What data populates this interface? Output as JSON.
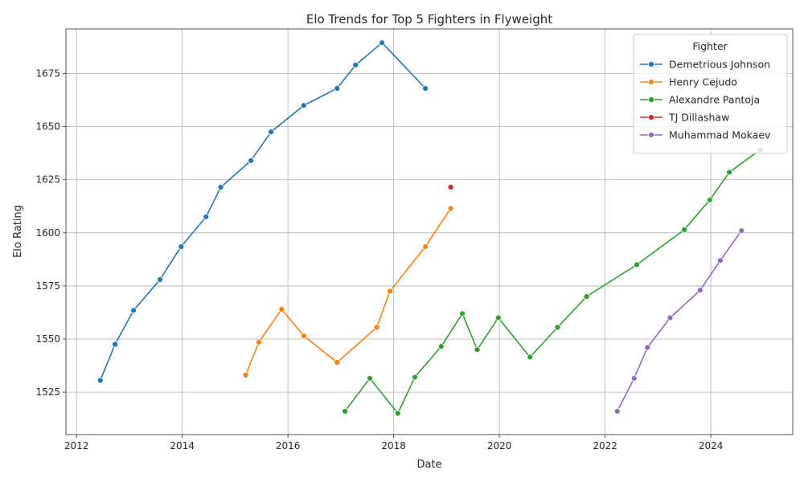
{
  "chart_data": {
    "type": "line",
    "title": "Elo Trends for Top 5 Fighters in Flyweight",
    "xlabel": "Date",
    "ylabel": "Elo Rating",
    "xlim": [
      2011.8,
      2025.55
    ],
    "ylim": [
      1505,
      1696
    ],
    "x_ticks": [
      2012,
      2014,
      2016,
      2018,
      2020,
      2022,
      2024
    ],
    "y_ticks": [
      1525,
      1550,
      1575,
      1600,
      1625,
      1650,
      1675
    ],
    "grid": true,
    "legend": {
      "title": "Fighter",
      "placement": "top-right"
    },
    "series": [
      {
        "name": "Demetrious Johnson",
        "color": "#1f77b4",
        "points": [
          [
            2012.45,
            1530.5
          ],
          [
            2012.73,
            1547.5
          ],
          [
            2013.08,
            1563.5
          ],
          [
            2013.58,
            1578
          ],
          [
            2013.98,
            1593.5
          ],
          [
            2014.45,
            1607.5
          ],
          [
            2014.73,
            1621.5
          ],
          [
            2015.3,
            1634
          ],
          [
            2015.68,
            1647.5
          ],
          [
            2016.3,
            1660
          ],
          [
            2016.93,
            1668
          ],
          [
            2017.28,
            1679
          ],
          [
            2017.78,
            1689.5
          ],
          [
            2018.6,
            1668
          ]
        ]
      },
      {
        "name": "Henry Cejudo",
        "color": "#ff7f0e",
        "points": [
          [
            2015.2,
            1533
          ],
          [
            2015.45,
            1548.5
          ],
          [
            2015.88,
            1564
          ],
          [
            2016.3,
            1551.5
          ],
          [
            2016.93,
            1539
          ],
          [
            2017.68,
            1555.5
          ],
          [
            2017.93,
            1572.5
          ],
          [
            2018.6,
            1593.5
          ],
          [
            2019.08,
            1611.5
          ]
        ]
      },
      {
        "name": "Alexandre Pantoja",
        "color": "#2ca02c",
        "points": [
          [
            2017.08,
            1516
          ],
          [
            2017.55,
            1531.5
          ],
          [
            2018.08,
            1515
          ],
          [
            2018.4,
            1532
          ],
          [
            2018.9,
            1546.5
          ],
          [
            2019.3,
            1562
          ],
          [
            2019.58,
            1545
          ],
          [
            2019.98,
            1560
          ],
          [
            2020.58,
            1541.5
          ],
          [
            2021.1,
            1555.5
          ],
          [
            2021.65,
            1570
          ],
          [
            2022.6,
            1585
          ],
          [
            2023.5,
            1601.5
          ],
          [
            2023.98,
            1615.5
          ],
          [
            2024.35,
            1628.5
          ],
          [
            2024.93,
            1639
          ]
        ]
      },
      {
        "name": "TJ Dillashaw",
        "color": "#d62728",
        "points": [
          [
            2019.08,
            1621.5
          ]
        ]
      },
      {
        "name": "Muhammad Mokaev",
        "color": "#9467bd",
        "points": [
          [
            2022.23,
            1516
          ],
          [
            2022.55,
            1531.5
          ],
          [
            2022.8,
            1546
          ],
          [
            2023.23,
            1560
          ],
          [
            2023.8,
            1573
          ],
          [
            2024.18,
            1587
          ],
          [
            2024.58,
            1601
          ]
        ]
      }
    ]
  }
}
